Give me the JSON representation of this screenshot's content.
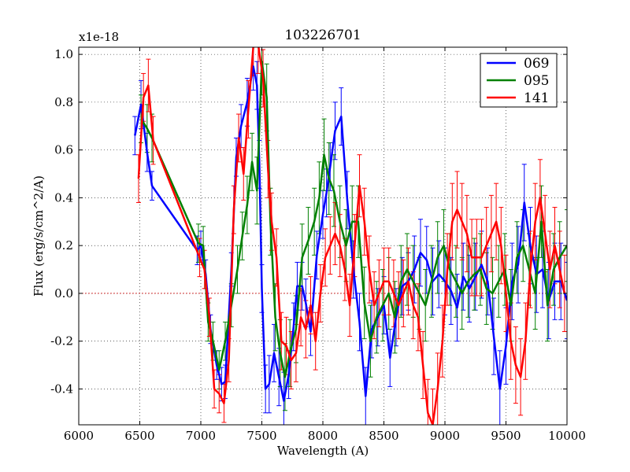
{
  "chart_data": {
    "type": "line",
    "title": "103226701",
    "xlabel": "Wavelength (A)",
    "ylabel": "Flux (erg/s/cm^2/A)",
    "y_offset_label": "x1e-18",
    "xlim": [
      6000,
      10000
    ],
    "ylim": [
      -0.55,
      1.03
    ],
    "x_ticks": [
      6000,
      6500,
      7000,
      7500,
      8000,
      8500,
      9000,
      9500,
      10000
    ],
    "x_tick_labels": [
      "6000",
      "6500",
      "7000",
      "7500",
      "8000",
      "8500",
      "9000",
      "9500",
      "10000"
    ],
    "y_ticks": [
      -0.4,
      -0.2,
      0.0,
      0.2,
      0.4,
      0.6,
      0.8,
      1.0
    ],
    "y_tick_labels": [
      "-0.4",
      "-0.2",
      "0.0",
      "0.2",
      "0.4",
      "0.6",
      "0.8",
      "1.0"
    ],
    "grid": true,
    "legend_position": "top-right",
    "zero_line_color": "#cc0000",
    "series": [
      {
        "name": "069",
        "color": "#0000ff",
        "x": [
          6460,
          6510,
          6560,
          6600,
          6970,
          7000,
          7040,
          7080,
          7130,
          7170,
          7200,
          7250,
          7290,
          7330,
          7380,
          7430,
          7460,
          7480,
          7500,
          7530,
          7560,
          7600,
          7640,
          7680,
          7720,
          7760,
          7790,
          7830,
          7860,
          7900,
          7950,
          8000,
          8030,
          8060,
          8100,
          8150,
          8200,
          8250,
          8300,
          8350,
          8400,
          8450,
          8500,
          8550,
          8600,
          8650,
          8700,
          8750,
          8800,
          8850,
          8900,
          8950,
          9000,
          9050,
          9100,
          9150,
          9200,
          9250,
          9300,
          9350,
          9400,
          9450,
          9500,
          9550,
          9600,
          9650,
          9700,
          9750,
          9800,
          9850,
          9900,
          9950,
          10000
        ],
        "y": [
          0.66,
          0.79,
          0.59,
          0.45,
          0.18,
          0.2,
          0.08,
          -0.15,
          -0.3,
          -0.38,
          -0.37,
          0.1,
          0.57,
          0.7,
          0.8,
          0.95,
          0.87,
          0.54,
          0.02,
          -0.4,
          -0.38,
          -0.25,
          -0.35,
          -0.45,
          -0.34,
          -0.14,
          0.03,
          0.03,
          -0.04,
          -0.16,
          0.16,
          0.33,
          0.42,
          0.53,
          0.68,
          0.74,
          0.39,
          0.1,
          -0.12,
          -0.43,
          -0.15,
          -0.1,
          -0.05,
          -0.27,
          -0.1,
          0.03,
          0.05,
          0.1,
          0.17,
          0.14,
          0.05,
          0.08,
          0.05,
          0.01,
          -0.06,
          0.07,
          0.02,
          0.07,
          0.12,
          0.05,
          -0.18,
          -0.4,
          -0.22,
          0.05,
          0.12,
          0.38,
          0.2,
          0.08,
          0.1,
          -0.03,
          0.05,
          0.05,
          -0.03
        ],
        "err": [
          0.08,
          0.1,
          0.08,
          0.06,
          0.06,
          0.06,
          0.06,
          0.06,
          0.06,
          0.07,
          0.07,
          0.07,
          0.08,
          0.09,
          0.1,
          0.1,
          0.1,
          0.1,
          0.1,
          0.1,
          0.12,
          0.12,
          0.12,
          0.12,
          0.1,
          0.1,
          0.1,
          0.1,
          0.1,
          0.1,
          0.1,
          0.1,
          0.1,
          0.1,
          0.12,
          0.12,
          0.12,
          0.12,
          0.12,
          0.12,
          0.12,
          0.12,
          0.12,
          0.12,
          0.12,
          0.12,
          0.12,
          0.14,
          0.14,
          0.14,
          0.14,
          0.14,
          0.14,
          0.14,
          0.14,
          0.14,
          0.14,
          0.14,
          0.14,
          0.14,
          0.16,
          0.16,
          0.16,
          0.16,
          0.16,
          0.16,
          0.16,
          0.16,
          0.16,
          0.16,
          0.16,
          0.16,
          0.16
        ]
      },
      {
        "name": "095",
        "color": "#008000",
        "x": [
          6510,
          6560,
          6600,
          6980,
          7020,
          7060,
          7100,
          7150,
          7200,
          7250,
          7300,
          7340,
          7380,
          7420,
          7460,
          7500,
          7540,
          7570,
          7610,
          7650,
          7690,
          7730,
          7780,
          7830,
          7880,
          7930,
          7970,
          8010,
          8050,
          8090,
          8140,
          8190,
          8240,
          8290,
          8340,
          8390,
          8440,
          8490,
          8540,
          8590,
          8640,
          8690,
          8740,
          8790,
          8840,
          8890,
          8940,
          8990,
          9040,
          9090,
          9140,
          9190,
          9240,
          9290,
          9340,
          9390,
          9440,
          9490,
          9540,
          9590,
          9640,
          9690,
          9740,
          9790,
          9840,
          9890,
          9940,
          10000
        ],
        "y": [
          0.73,
          0.69,
          0.65,
          0.21,
          0.2,
          -0.12,
          -0.2,
          -0.32,
          -0.2,
          -0.05,
          0.1,
          0.24,
          0.37,
          0.55,
          0.43,
          0.97,
          0.82,
          0.3,
          -0.1,
          -0.25,
          -0.35,
          -0.25,
          -0.15,
          0.15,
          0.22,
          0.3,
          0.4,
          0.58,
          0.48,
          0.43,
          0.3,
          0.2,
          0.3,
          0.3,
          -0.04,
          -0.2,
          -0.1,
          -0.05,
          0.0,
          -0.1,
          0.05,
          0.1,
          0.05,
          0.0,
          -0.05,
          0.05,
          0.15,
          0.2,
          0.1,
          0.05,
          0.0,
          0.05,
          0.08,
          0.1,
          0.02,
          0.0,
          0.05,
          0.1,
          -0.05,
          0.15,
          0.2,
          0.1,
          0.0,
          0.3,
          -0.05,
          0.1,
          0.15,
          0.2
        ],
        "err": [
          0.1,
          0.1,
          0.1,
          0.08,
          0.08,
          0.08,
          0.08,
          0.08,
          0.08,
          0.09,
          0.1,
          0.1,
          0.12,
          0.12,
          0.14,
          0.14,
          0.14,
          0.14,
          0.14,
          0.14,
          0.14,
          0.14,
          0.14,
          0.14,
          0.14,
          0.14,
          0.15,
          0.15,
          0.15,
          0.15,
          0.15,
          0.15,
          0.15,
          0.15,
          0.15,
          0.15,
          0.15,
          0.15,
          0.15,
          0.15,
          0.15,
          0.15,
          0.15,
          0.15,
          0.15,
          0.15,
          0.15,
          0.15,
          0.15,
          0.15,
          0.15,
          0.15,
          0.15,
          0.15,
          0.15,
          0.15,
          0.15,
          0.15,
          0.15,
          0.15,
          0.15,
          0.15,
          0.15,
          0.15,
          0.15,
          0.15,
          0.15,
          0.15
        ]
      },
      {
        "name": "141",
        "color": "#ff0000",
        "x": [
          6490,
          6530,
          6570,
          6610,
          6990,
          7030,
          7070,
          7110,
          7150,
          7190,
          7230,
          7270,
          7310,
          7350,
          7390,
          7430,
          7470,
          7510,
          7550,
          7580,
          7620,
          7660,
          7700,
          7740,
          7780,
          7820,
          7860,
          7900,
          7940,
          7980,
          8020,
          8060,
          8100,
          8140,
          8180,
          8220,
          8260,
          8300,
          8340,
          8380,
          8420,
          8460,
          8500,
          8540,
          8580,
          8620,
          8660,
          8700,
          8740,
          8780,
          8820,
          8860,
          8900,
          8940,
          8980,
          9020,
          9060,
          9100,
          9140,
          9180,
          9220,
          9260,
          9300,
          9340,
          9380,
          9420,
          9460,
          9500,
          9540,
          9580,
          9620,
          9660,
          9700,
          9740,
          9780,
          9820,
          9860,
          9900,
          9940,
          9980
        ],
        "y": [
          0.48,
          0.82,
          0.87,
          0.64,
          0.15,
          0.1,
          -0.1,
          -0.4,
          -0.42,
          -0.46,
          -0.28,
          0.35,
          0.65,
          0.5,
          0.77,
          1.03,
          1.04,
          0.9,
          0.52,
          0.3,
          0.15,
          -0.2,
          -0.22,
          -0.28,
          -0.25,
          -0.1,
          -0.15,
          -0.05,
          -0.2,
          0.0,
          0.15,
          0.2,
          0.25,
          0.2,
          0.1,
          -0.05,
          0.2,
          0.45,
          0.3,
          0.1,
          -0.05,
          0.0,
          0.05,
          0.05,
          0.0,
          -0.05,
          0.0,
          0.05,
          -0.05,
          -0.1,
          -0.3,
          -0.5,
          -0.55,
          -0.4,
          -0.2,
          0.1,
          0.3,
          0.35,
          0.3,
          0.25,
          0.15,
          0.15,
          0.15,
          0.2,
          0.25,
          0.3,
          0.2,
          0.0,
          -0.2,
          -0.3,
          -0.35,
          -0.2,
          0.1,
          0.3,
          0.4,
          0.25,
          0.1,
          0.2,
          0.1,
          0.0
        ],
        "err": [
          0.1,
          0.1,
          0.11,
          0.1,
          0.08,
          0.08,
          0.08,
          0.08,
          0.08,
          0.08,
          0.09,
          0.1,
          0.1,
          0.11,
          0.12,
          0.12,
          0.12,
          0.12,
          0.12,
          0.12,
          0.12,
          0.12,
          0.12,
          0.12,
          0.12,
          0.12,
          0.12,
          0.12,
          0.12,
          0.12,
          0.12,
          0.12,
          0.13,
          0.13,
          0.13,
          0.13,
          0.13,
          0.13,
          0.14,
          0.14,
          0.14,
          0.14,
          0.14,
          0.14,
          0.14,
          0.14,
          0.14,
          0.14,
          0.14,
          0.14,
          0.14,
          0.14,
          0.15,
          0.15,
          0.15,
          0.15,
          0.16,
          0.16,
          0.16,
          0.16,
          0.16,
          0.16,
          0.16,
          0.16,
          0.16,
          0.16,
          0.16,
          0.16,
          0.16,
          0.16,
          0.16,
          0.16,
          0.16,
          0.16,
          0.16,
          0.16,
          0.16,
          0.16,
          0.16,
          0.16
        ]
      }
    ]
  }
}
